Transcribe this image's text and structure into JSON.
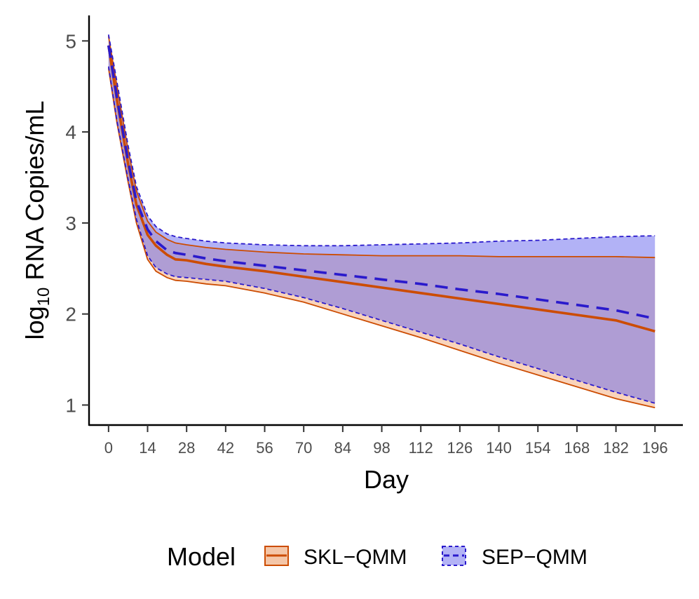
{
  "chart_data": {
    "type": "line",
    "xlabel": "Day",
    "ylabel_main": "log",
    "ylabel_sub": "10",
    "ylabel_rest": " RNA Copies/mL",
    "xlim": [
      -7,
      206
    ],
    "ylim": [
      0.78,
      5.28
    ],
    "xticks": [
      0,
      14,
      28,
      42,
      56,
      70,
      84,
      98,
      112,
      126,
      140,
      154,
      168,
      182,
      196
    ],
    "yticks": [
      1,
      2,
      3,
      4,
      5
    ],
    "grid": false,
    "legend": {
      "position": "bottom",
      "title": "Model",
      "entries": [
        "SKL−QMM",
        "SEP−QMM"
      ]
    },
    "series": [
      {
        "name": "SKL−QMM",
        "color": "#cc4c02",
        "fill": "#f4b183",
        "linestyle": "solid",
        "x": [
          0,
          3,
          7,
          10,
          14,
          17,
          21,
          24,
          28,
          35,
          42,
          56,
          70,
          84,
          98,
          112,
          126,
          140,
          154,
          168,
          182,
          196
        ],
        "mean": [
          4.95,
          4.35,
          3.65,
          3.2,
          2.87,
          2.75,
          2.65,
          2.6,
          2.59,
          2.55,
          2.52,
          2.47,
          2.41,
          2.35,
          2.29,
          2.23,
          2.17,
          2.11,
          2.05,
          1.99,
          1.93,
          1.81
        ],
        "upper": [
          5.05,
          4.5,
          3.8,
          3.35,
          3.02,
          2.9,
          2.82,
          2.78,
          2.76,
          2.73,
          2.71,
          2.68,
          2.66,
          2.65,
          2.64,
          2.64,
          2.64,
          2.63,
          2.63,
          2.63,
          2.63,
          2.62
        ],
        "lower": [
          4.7,
          4.1,
          3.45,
          3.0,
          2.6,
          2.47,
          2.4,
          2.37,
          2.36,
          2.33,
          2.31,
          2.23,
          2.13,
          2.0,
          1.87,
          1.74,
          1.6,
          1.46,
          1.33,
          1.2,
          1.07,
          0.97
        ]
      },
      {
        "name": "SEP−QMM",
        "color": "#2a1acc",
        "fill": "#6666ee",
        "linestyle": "dashed",
        "x": [
          0,
          3,
          7,
          10,
          14,
          17,
          21,
          24,
          28,
          35,
          42,
          56,
          70,
          84,
          98,
          112,
          126,
          140,
          154,
          168,
          182,
          196
        ],
        "mean": [
          4.95,
          4.38,
          3.68,
          3.24,
          2.93,
          2.8,
          2.7,
          2.67,
          2.65,
          2.61,
          2.58,
          2.53,
          2.48,
          2.43,
          2.38,
          2.33,
          2.27,
          2.22,
          2.16,
          2.1,
          2.04,
          1.95
        ],
        "upper": [
          5.07,
          4.55,
          3.85,
          3.4,
          3.08,
          2.96,
          2.88,
          2.85,
          2.83,
          2.8,
          2.78,
          2.76,
          2.75,
          2.75,
          2.76,
          2.77,
          2.78,
          2.8,
          2.81,
          2.83,
          2.85,
          2.86
        ],
        "lower": [
          4.72,
          4.12,
          3.48,
          3.04,
          2.64,
          2.51,
          2.44,
          2.41,
          2.4,
          2.38,
          2.36,
          2.28,
          2.18,
          2.06,
          1.93,
          1.8,
          1.67,
          1.53,
          1.4,
          1.27,
          1.14,
          1.02
        ]
      }
    ]
  }
}
